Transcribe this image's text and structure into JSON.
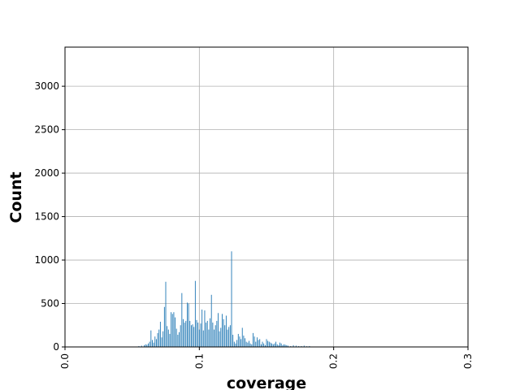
{
  "chart_data": {
    "type": "bar",
    "title": "",
    "xlabel": "coverage",
    "ylabel": "Count",
    "xlim": [
      0.0,
      0.3
    ],
    "ylim": [
      0,
      3450
    ],
    "xticks": [
      {
        "value": 0.0,
        "label": "0.0"
      },
      {
        "value": 0.1,
        "label": "0.1"
      },
      {
        "value": 0.2,
        "label": "0.2"
      },
      {
        "value": 0.3,
        "label": "0.3"
      }
    ],
    "yticks": [
      {
        "value": 0,
        "label": "0"
      },
      {
        "value": 500,
        "label": "500"
      },
      {
        "value": 1000,
        "label": "1000"
      },
      {
        "value": 1500,
        "label": "1500"
      },
      {
        "value": 2000,
        "label": "2000"
      },
      {
        "value": 2500,
        "label": "2500"
      },
      {
        "value": 3000,
        "label": "3000"
      }
    ],
    "grid": true,
    "bar_color": "#1f77b4",
    "bin_width": 0.0003,
    "x": [
      0.055,
      0.057,
      0.059,
      0.06,
      0.061,
      0.062,
      0.063,
      0.064,
      0.065,
      0.066,
      0.067,
      0.068,
      0.069,
      0.07,
      0.071,
      0.072,
      0.073,
      0.074,
      0.075,
      0.076,
      0.077,
      0.078,
      0.079,
      0.08,
      0.081,
      0.082,
      0.083,
      0.084,
      0.085,
      0.086,
      0.087,
      0.088,
      0.089,
      0.09,
      0.091,
      0.092,
      0.093,
      0.094,
      0.095,
      0.096,
      0.097,
      0.098,
      0.099,
      0.1,
      0.101,
      0.102,
      0.103,
      0.104,
      0.105,
      0.106,
      0.107,
      0.108,
      0.109,
      0.11,
      0.111,
      0.112,
      0.113,
      0.114,
      0.115,
      0.116,
      0.117,
      0.118,
      0.119,
      0.12,
      0.121,
      0.122,
      0.123,
      0.124,
      0.125,
      0.126,
      0.127,
      0.128,
      0.129,
      0.13,
      0.131,
      0.132,
      0.133,
      0.134,
      0.135,
      0.136,
      0.137,
      0.138,
      0.139,
      0.14,
      0.141,
      0.142,
      0.143,
      0.144,
      0.145,
      0.146,
      0.147,
      0.148,
      0.149,
      0.15,
      0.151,
      0.152,
      0.153,
      0.154,
      0.155,
      0.156,
      0.157,
      0.158,
      0.159,
      0.16,
      0.161,
      0.162,
      0.163,
      0.164,
      0.165,
      0.166,
      0.168,
      0.17,
      0.172,
      0.174,
      0.176,
      0.178,
      0.18,
      0.182
    ],
    "values": [
      10,
      15,
      20,
      30,
      25,
      40,
      60,
      190,
      80,
      50,
      120,
      90,
      160,
      200,
      290,
      110,
      180,
      460,
      750,
      240,
      200,
      150,
      400,
      380,
      400,
      340,
      210,
      140,
      170,
      250,
      620,
      320,
      280,
      300,
      510,
      500,
      300,
      250,
      260,
      230,
      760,
      310,
      280,
      200,
      270,
      430,
      190,
      420,
      280,
      300,
      200,
      330,
      600,
      280,
      200,
      250,
      300,
      390,
      180,
      220,
      380,
      320,
      250,
      360,
      200,
      230,
      250,
      1100,
      140,
      60,
      40,
      80,
      150,
      120,
      90,
      220,
      130,
      100,
      60,
      50,
      70,
      40,
      30,
      160,
      120,
      60,
      110,
      80,
      90,
      30,
      60,
      40,
      20,
      90,
      70,
      60,
      50,
      40,
      30,
      40,
      60,
      30,
      20,
      50,
      40,
      20,
      30,
      25,
      20,
      15,
      10,
      20,
      15,
      10,
      10,
      15,
      8,
      10
    ]
  }
}
